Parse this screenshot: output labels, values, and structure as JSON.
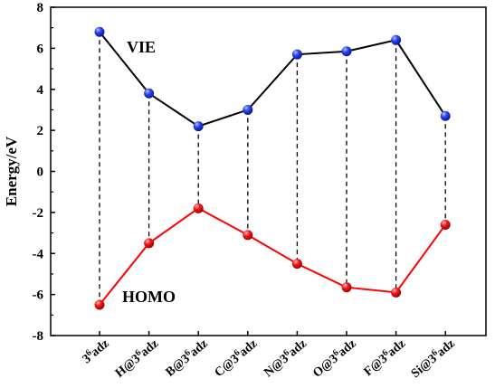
{
  "chart_data": {
    "type": "line",
    "title": "",
    "xlabel": "",
    "ylabel": "Energy/eV",
    "ylim": [
      -8,
      8
    ],
    "yticks": [
      8,
      6,
      4,
      2,
      0,
      -2,
      -4,
      -6,
      -8
    ],
    "ytick_labels": [
      "8",
      "6",
      "4",
      "2",
      "0",
      "-2",
      "-4",
      "-6",
      "-8"
    ],
    "categories": [
      {
        "base": "3",
        "sup": "6",
        "rest": "adz"
      },
      {
        "base": "H@3",
        "sup": "6",
        "rest": "adz"
      },
      {
        "base": "B@3",
        "sup": "6",
        "rest": "adz"
      },
      {
        "base": "C@3",
        "sup": "6",
        "rest": "adz"
      },
      {
        "base": "N@3",
        "sup": "6",
        "rest": "adz"
      },
      {
        "base": "O@3",
        "sup": "6",
        "rest": "adz"
      },
      {
        "base": "F@3",
        "sup": "6",
        "rest": "adz"
      },
      {
        "base": "Si@3",
        "sup": "6",
        "rest": "adz"
      }
    ],
    "series": [
      {
        "name": "VIE",
        "color": "#000000",
        "marker_color": "#1a2ee0",
        "values": [
          6.8,
          3.8,
          2.2,
          3.0,
          5.7,
          5.85,
          6.4,
          2.7
        ]
      },
      {
        "name": "HOMO",
        "color": "#ff0000",
        "marker_color": "#e81010",
        "values": [
          -6.5,
          -3.5,
          -1.8,
          -3.1,
          -4.5,
          -5.65,
          -5.9,
          -2.6
        ]
      }
    ],
    "connectors": "dashed vertical lines between series at each category",
    "grid": false
  }
}
